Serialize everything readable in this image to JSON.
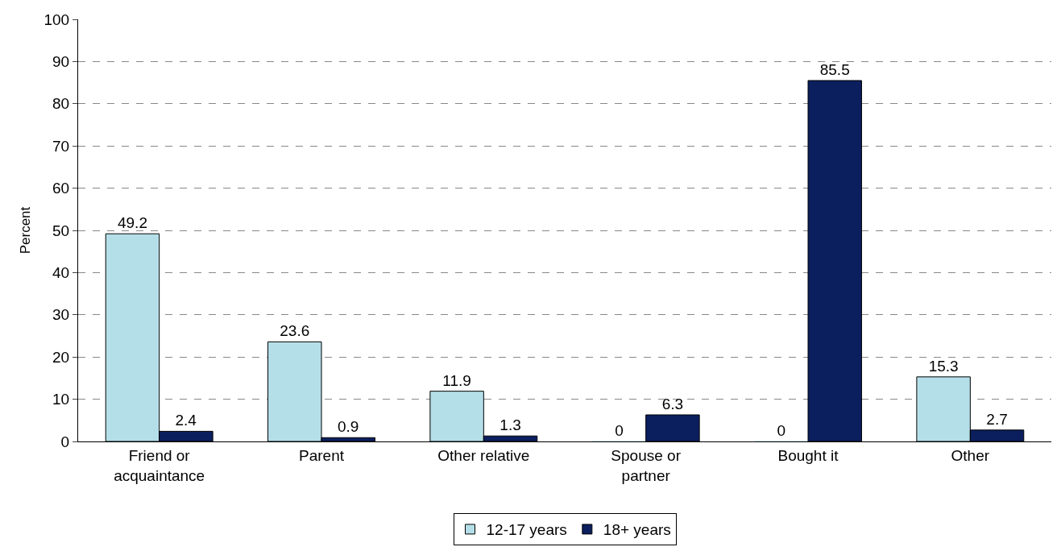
{
  "chart_data": {
    "type": "bar",
    "ylabel": "Percent",
    "categories": [
      "Friend or acquaintance",
      "Parent",
      "Other relative",
      "Spouse or partner",
      "Bought it",
      "Other"
    ],
    "series": [
      {
        "name": "12-17 years",
        "color": "#b4dfe8",
        "values": [
          49.2,
          23.6,
          11.9,
          0,
          0,
          15.3
        ]
      },
      {
        "name": "18+ years",
        "color": "#0b1f5e",
        "values": [
          2.4,
          0.9,
          1.3,
          6.3,
          85.5,
          2.7
        ]
      }
    ],
    "ylim": [
      0,
      100
    ],
    "yticks": [
      0,
      10,
      20,
      30,
      40,
      50,
      60,
      70,
      80,
      90,
      100
    ],
    "grid": "y",
    "legend": "bottom",
    "data_labels": true
  }
}
